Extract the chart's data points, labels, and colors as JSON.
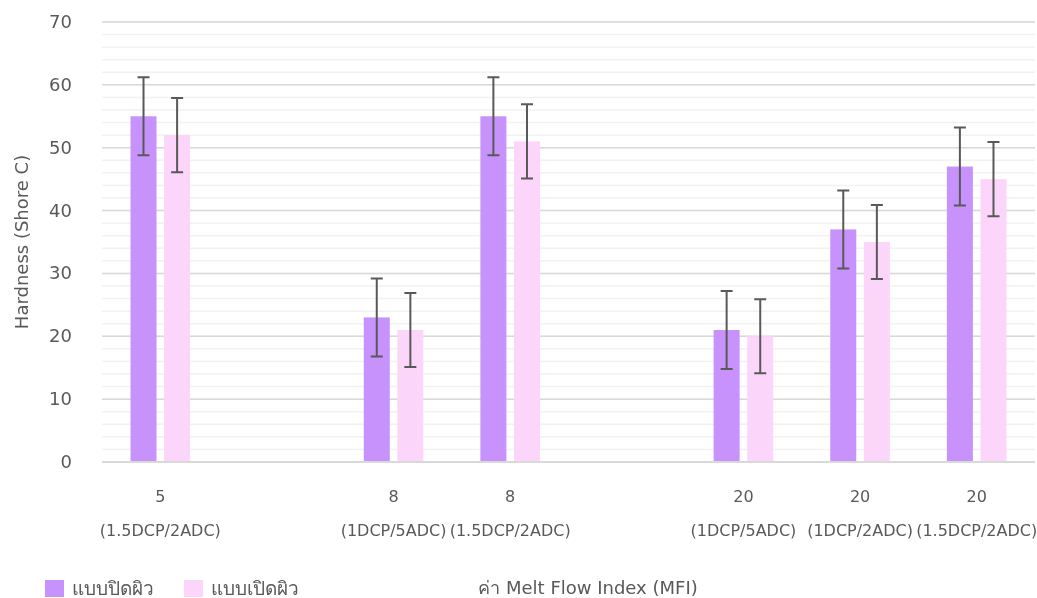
{
  "chart_data": {
    "type": "bar",
    "xlabel": "ค่า Melt Flow Index (MFI)",
    "ylabel": "Hardness (Shore C)",
    "categories": [
      "5\n(1.5DCP/2ADC)",
      null,
      "8\n(1DCP/5ADC)",
      "8\n(1.5DCP/2ADC)",
      null,
      "20\n(1DCP/5ADC)",
      "20\n(1DCP/2ADC)",
      "20\n(1.5DCP/2ADC)"
    ],
    "series": [
      {
        "name": "แบบปิดผิว",
        "color": "#c792fb",
        "values": [
          55,
          null,
          23,
          55,
          null,
          21,
          37,
          47
        ],
        "errors": [
          6.2,
          null,
          6.2,
          6.2,
          null,
          6.2,
          6.2,
          6.2
        ]
      },
      {
        "name": "แบบเปิดผิว",
        "color": "#fbd5fa",
        "values": [
          52,
          null,
          21,
          51,
          null,
          20,
          35,
          45
        ],
        "errors": [
          5.9,
          null,
          5.9,
          5.9,
          null,
          5.9,
          5.9,
          5.9
        ]
      }
    ],
    "ylim": [
      0,
      70
    ],
    "yticks": [
      0,
      10,
      20,
      30,
      40,
      50,
      60,
      70
    ],
    "grid": "y",
    "legend": "bottom left"
  }
}
